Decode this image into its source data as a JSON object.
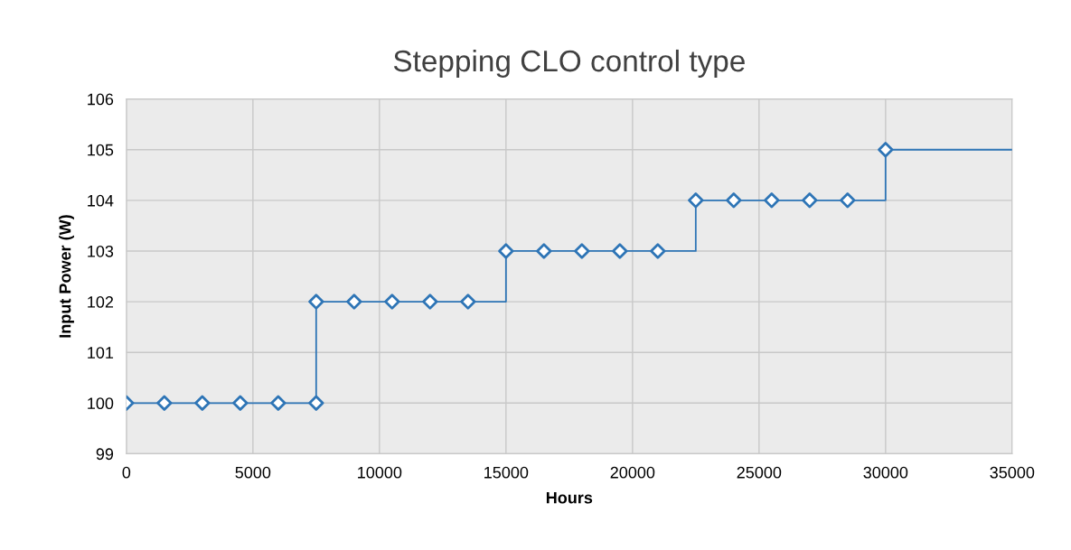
{
  "chart_data": {
    "type": "line",
    "title": "Stepping CLO control type",
    "xlabel": "Hours",
    "ylabel": "Input Power (W)",
    "series": [
      {
        "color": "#2e75b6",
        "marker": "none",
        "x": [
          0,
          7500,
          7500,
          15000,
          15000,
          22500,
          22500,
          30000,
          30000,
          35000
        ],
        "values": [
          100,
          100,
          102,
          102,
          103,
          103,
          104,
          104,
          105,
          105
        ]
      },
      {
        "type": "scatter",
        "color": "#2e75b6",
        "marker": "diamond",
        "x": [
          0,
          1500,
          3000,
          4500,
          6000,
          7500,
          7500,
          9000,
          10500,
          12000,
          13500,
          15000,
          16500,
          18000,
          19500,
          21000,
          22500,
          24000,
          25500,
          27000,
          28500,
          30000
        ],
        "values": [
          100,
          100,
          100,
          100,
          100,
          100,
          102,
          102,
          102,
          102,
          102,
          103,
          103,
          103,
          103,
          103,
          104,
          104,
          104,
          104,
          104,
          105
        ]
      }
    ],
    "xlim": [
      0,
      35000
    ],
    "xticks": [
      0,
      5000,
      10000,
      15000,
      20000,
      25000,
      30000,
      35000
    ],
    "ylim": [
      99,
      106
    ],
    "yticks": [
      99,
      100,
      101,
      102,
      103,
      104,
      105,
      106
    ],
    "grid": true
  }
}
